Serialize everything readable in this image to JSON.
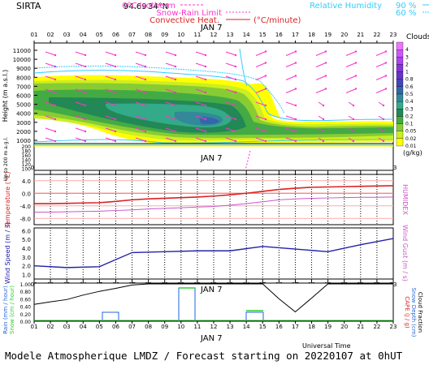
{
  "header": {
    "site": "SIRTA",
    "coords": "94.69",
    "coords_tail": "34°N",
    "legend_isotherm": "0°C isotherm",
    "legend_snow_rain": "Snow-Rain Limit",
    "legend_convective": "Convective Heat.",
    "legend_convective_unit": "(°C/minute)",
    "legend_rh": "Relative Humidity",
    "rh90": "90 %",
    "rh60": "60 %",
    "day_label": "JAN  7"
  },
  "colors": {
    "magenta": "#ff33cc",
    "cyan": "#33ccff",
    "red": "#dd2222",
    "blue": "#2222aa",
    "green": "#33cc33"
  },
  "hours": [
    "01",
    "02",
    "03",
    "04",
    "05",
    "06",
    "07",
    "08",
    "09",
    "10",
    "11",
    "12",
    "13",
    "14",
    "15",
    "16",
    "17",
    "18",
    "19",
    "20",
    "21",
    "22",
    "23"
  ],
  "clouds_legend": {
    "title": "Clouds",
    "unit": "(g/kg)",
    "levels": [
      "0.01",
      "0.02",
      "0.05",
      "0.1",
      "0.2",
      "0.3",
      "0.4",
      "0.5",
      "0.6",
      "0.8",
      "1",
      "2",
      "3",
      "4"
    ],
    "colors": [
      "#ffff00",
      "#ccee22",
      "#88cc33",
      "#44aa44",
      "#228855",
      "#33aa88",
      "#338899",
      "#3366aa",
      "#4444bb",
      "#6633cc",
      "#8833dd",
      "#aa44ee",
      "#cc55ff",
      "#ee77ff"
    ]
  },
  "panel1": {
    "ylabel": "Height  (m  a.s.l.)",
    "ylabel_lower": "Up to 200 m a.g.l.",
    "yticks": [
      "11000",
      "10000",
      "9000",
      "8000",
      "7000",
      "6000",
      "5000",
      "4000",
      "3000",
      "2000",
      "1000"
    ],
    "lower_ticks": [
      "200",
      "180",
      "160",
      "140",
      "120",
      "100"
    ]
  },
  "panel2": {
    "ylabel": "Temperature  (°C)",
    "ylabel_right": "HUMIDEX",
    "yticks": [
      "4.0",
      "0.0",
      "-4.0",
      "-8.0"
    ],
    "temperature_x": [
      1,
      2,
      3,
      4,
      5,
      6,
      7,
      8,
      9,
      10,
      11,
      12,
      13,
      14,
      15,
      16,
      17,
      18,
      19,
      20,
      21,
      22,
      23
    ],
    "temperature": [
      -3.3,
      -3.3,
      -3.2,
      -3.1,
      -3.0,
      -2.6,
      -2.1,
      -1.8,
      -1.6,
      -1.4,
      -1.2,
      -0.9,
      -0.5,
      0.0,
      0.6,
      1.2,
      1.6,
      1.9,
      2.0,
      2.1,
      2.2,
      2.3,
      2.4
    ],
    "humidex": [
      -6.0,
      -6.0,
      -5.9,
      -5.8,
      -5.7,
      -5.5,
      -5.3,
      -5.0,
      -4.8,
      -4.6,
      -4.4,
      -4.2,
      -3.8,
      -3.3,
      -2.7,
      -2.1,
      -1.8,
      -1.6,
      -1.5,
      -1.4,
      -1.3,
      -1.3,
      -1.2
    ]
  },
  "panel3": {
    "ylabel": "Wind Speed  (m / s)",
    "ylabel_right": "Wind Gust  (m / s)",
    "yticks": [
      "6.0",
      "5.0",
      "4.0",
      "3.0",
      "2.0",
      "1.0"
    ],
    "wind_x": [
      1,
      3,
      5,
      7,
      9,
      11,
      13,
      15,
      17,
      19,
      21,
      23
    ],
    "wind": [
      2.0,
      1.8,
      1.9,
      3.5,
      3.6,
      3.7,
      3.7,
      4.2,
      3.9,
      3.6,
      4.4,
      5.1
    ]
  },
  "panel4": {
    "ylabel": "Rain  (mm / hour)",
    "ylabel2": "Snow  (cm / hour)",
    "ylabel_right": "CAPE  (J / g)",
    "ylabel_right2": "Snow Depth  (cm)",
    "ylabel_right3": "Cloud Fraction",
    "yticks": [
      "1.00",
      "0.80",
      "0.60",
      "0.40",
      "0.20",
      "0.00"
    ],
    "cloud_fraction": [
      0.45,
      0.52,
      0.58,
      0.7,
      0.8,
      0.88,
      0.97,
      1.0,
      1.0,
      1.0,
      1.0,
      1.0,
      1.0,
      1.0,
      1.0,
      0.6,
      0.25,
      0.62,
      1.0,
      1.0,
      1.0,
      1.0,
      1.0
    ]
  },
  "bottom": {
    "day_label": "JAN  7",
    "universal_time": "Universal Time"
  },
  "footer": "Modele Atmospherique LMDZ / Forecast starting on 20220107 at 0hUT"
}
